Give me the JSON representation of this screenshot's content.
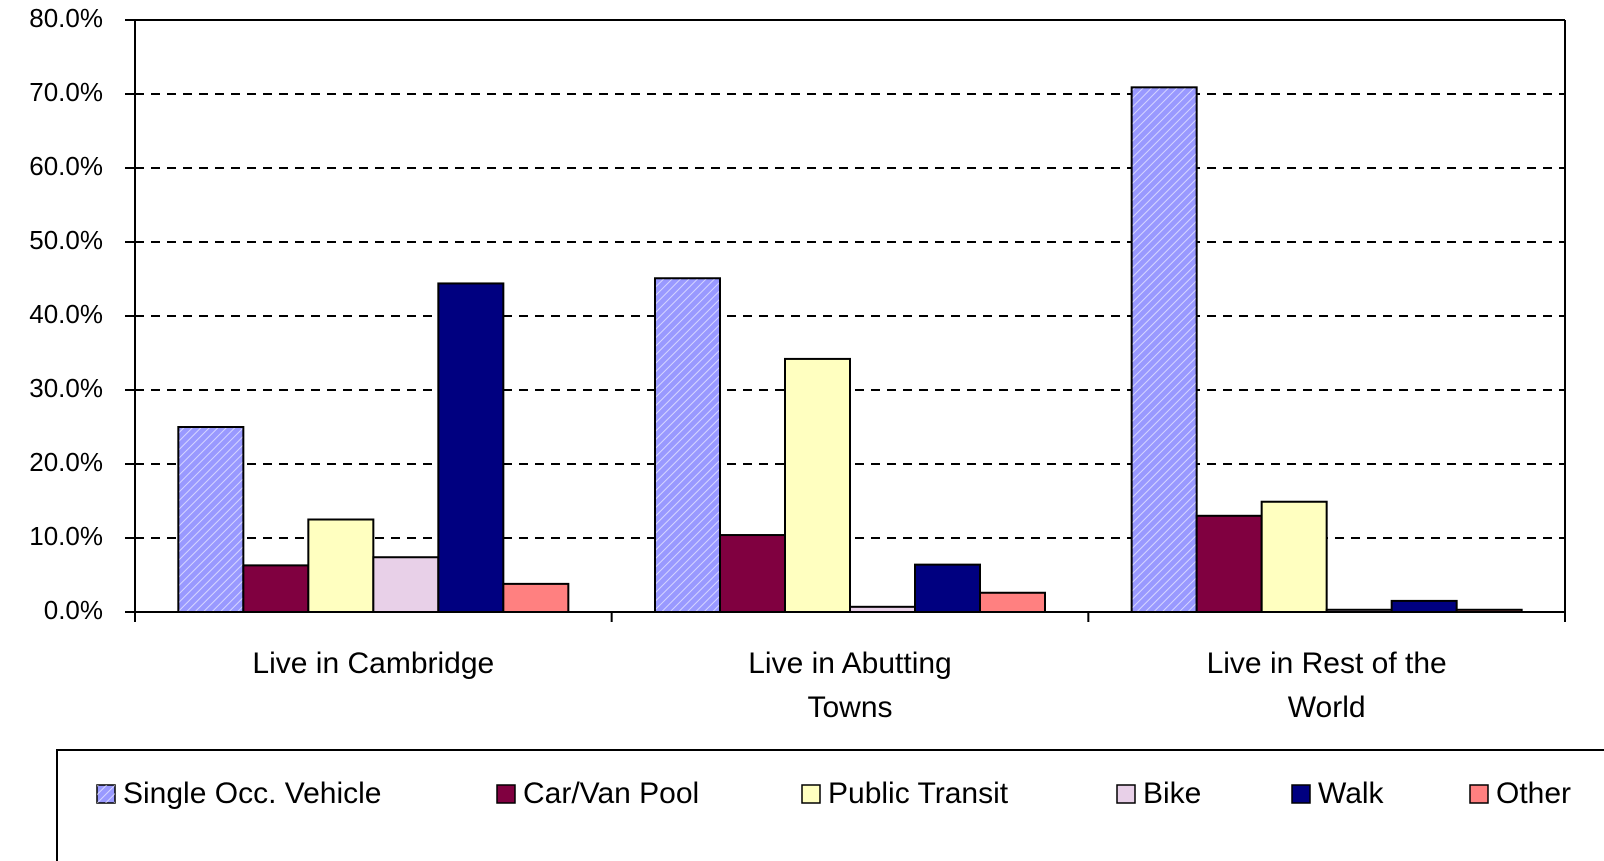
{
  "chart_data": {
    "type": "bar",
    "categories": [
      "Live in Cambridge",
      "Live in Abutting Towns",
      "Live in Rest of the World"
    ],
    "series": [
      {
        "name": "Single Occ. Vehicle",
        "color": "#9999ff",
        "values": [
          25.0,
          45.1,
          70.9
        ]
      },
      {
        "name": "Car/Van Pool",
        "color": "#800040",
        "values": [
          6.3,
          10.4,
          13.0
        ]
      },
      {
        "name": "Public Transit",
        "color": "#ffffc0",
        "values": [
          12.5,
          34.2,
          14.9
        ]
      },
      {
        "name": "Bike",
        "color": "#e8d0e8",
        "values": [
          7.4,
          0.7,
          0.3
        ]
      },
      {
        "name": "Walk",
        "color": "#000080",
        "values": [
          44.4,
          6.4,
          1.5
        ]
      },
      {
        "name": "Other",
        "color": "#ff8080",
        "values": [
          3.8,
          2.6,
          0.3
        ]
      }
    ],
    "ylim": [
      0,
      80
    ],
    "yticks": [
      {
        "value": 0,
        "label": "0.0%"
      },
      {
        "value": 10,
        "label": "10.0%"
      },
      {
        "value": 20,
        "label": "20.0%"
      },
      {
        "value": 30,
        "label": "30.0%"
      },
      {
        "value": 40,
        "label": "40.0%"
      },
      {
        "value": 50,
        "label": "50.0%"
      },
      {
        "value": 60,
        "label": "60.0%"
      },
      {
        "value": 70,
        "label": "70.0%"
      },
      {
        "value": 80,
        "label": "80.0%"
      }
    ],
    "grid": true,
    "legend": "bottom"
  }
}
